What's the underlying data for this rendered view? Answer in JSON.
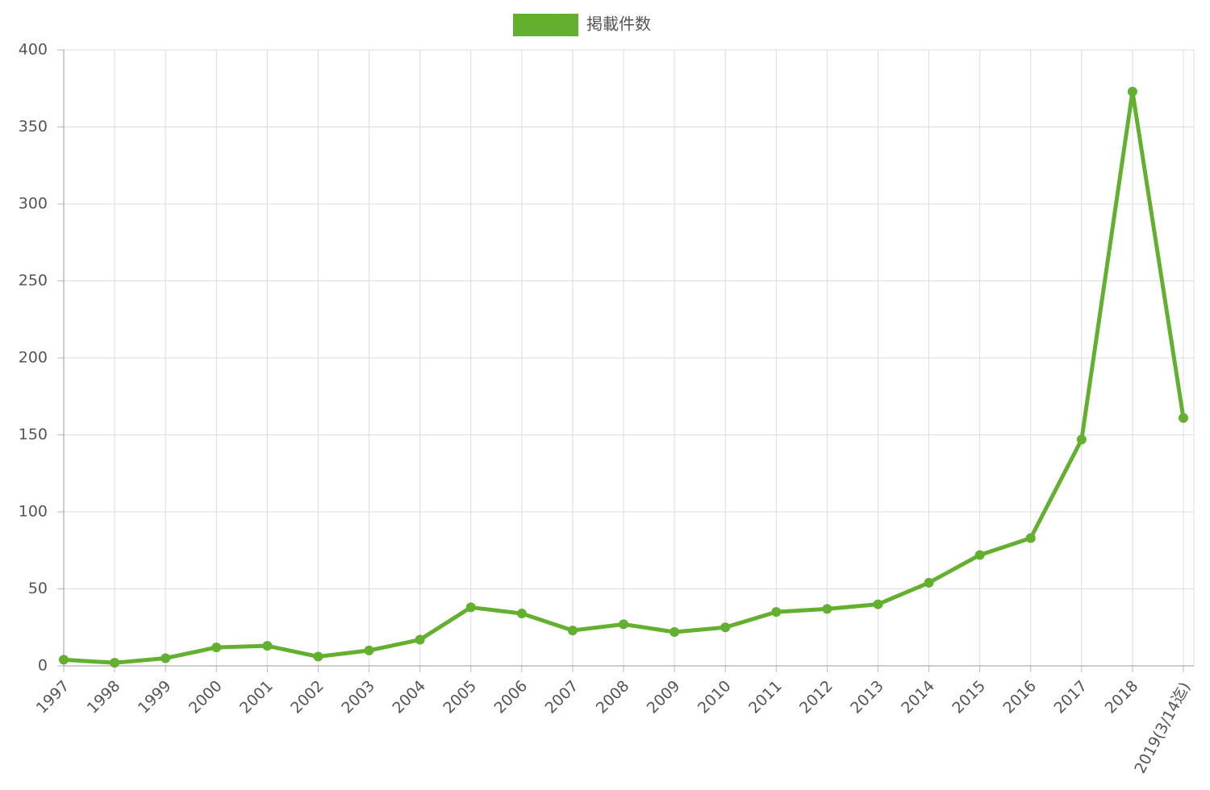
{
  "chart_data": {
    "type": "line",
    "categories": [
      "1997",
      "1998",
      "1999",
      "2000",
      "2001",
      "2002",
      "2003",
      "2004",
      "2005",
      "2006",
      "2007",
      "2008",
      "2009",
      "2010",
      "2011",
      "2012",
      "2013",
      "2014",
      "2015",
      "2016",
      "2017",
      "2018",
      "2019(3/14迄)"
    ],
    "series": [
      {
        "name": "掲載件数",
        "color": "#63b030",
        "values": [
          4,
          2,
          5,
          12,
          13,
          6,
          10,
          17,
          38,
          34,
          23,
          27,
          22,
          25,
          35,
          37,
          40,
          54,
          72,
          83,
          147,
          373,
          161
        ]
      }
    ],
    "ylim": [
      0,
      400
    ],
    "yticks": [
      0,
      50,
      100,
      150,
      200,
      250,
      300,
      350,
      400
    ],
    "grid": true
  }
}
